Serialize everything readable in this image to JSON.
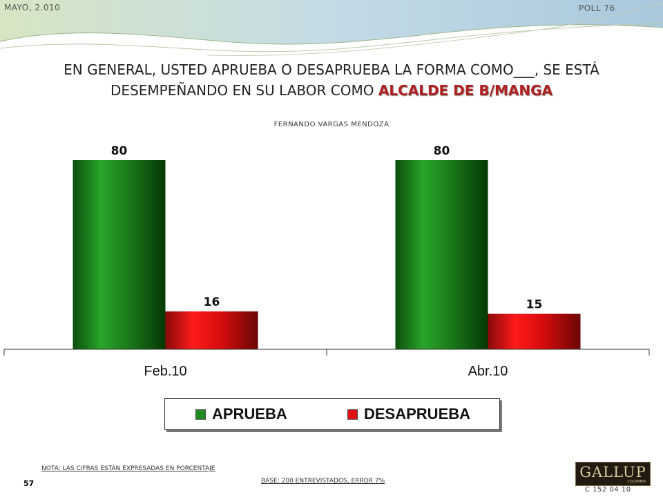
{
  "header": {
    "date": "MAYO, 2.010",
    "poll": "POLL 76"
  },
  "title": {
    "line1": "EN GENERAL, USTED APRUEBA O DESAPRUEBA LA FORMA COMO___, SE ESTÁ",
    "line2_prefix": "DESEMPEÑANDO EN SU LABOR COMO ",
    "line2_highlight": "ALCALDE DE B/MANGA"
  },
  "subtitle": "FERNANDO VARGAS MENDOZA",
  "chart_data": {
    "type": "bar",
    "title": "FERNANDO VARGAS MENDOZA",
    "categories": [
      "Feb.10",
      "Abr.10"
    ],
    "series": [
      {
        "name": "APRUEBA",
        "values": [
          80,
          80
        ],
        "color": "#1f8a1f"
      },
      {
        "name": "DESAPRUEBA",
        "values": [
          16,
          15
        ],
        "color": "#e01010"
      }
    ],
    "ylim": [
      0,
      80
    ],
    "grid": false,
    "legend": "bottom"
  },
  "footer": {
    "note": "NOTA: LAS CIFRAS ESTÁN EXPRESADAS EN PORCENTAJE",
    "page": "57",
    "base": "BASE: 200 ENTREVISTADOS, ERROR 7%",
    "logo": "GALLUP",
    "logo_sub": "COLOMBIA",
    "code": "C 152 04 10"
  }
}
